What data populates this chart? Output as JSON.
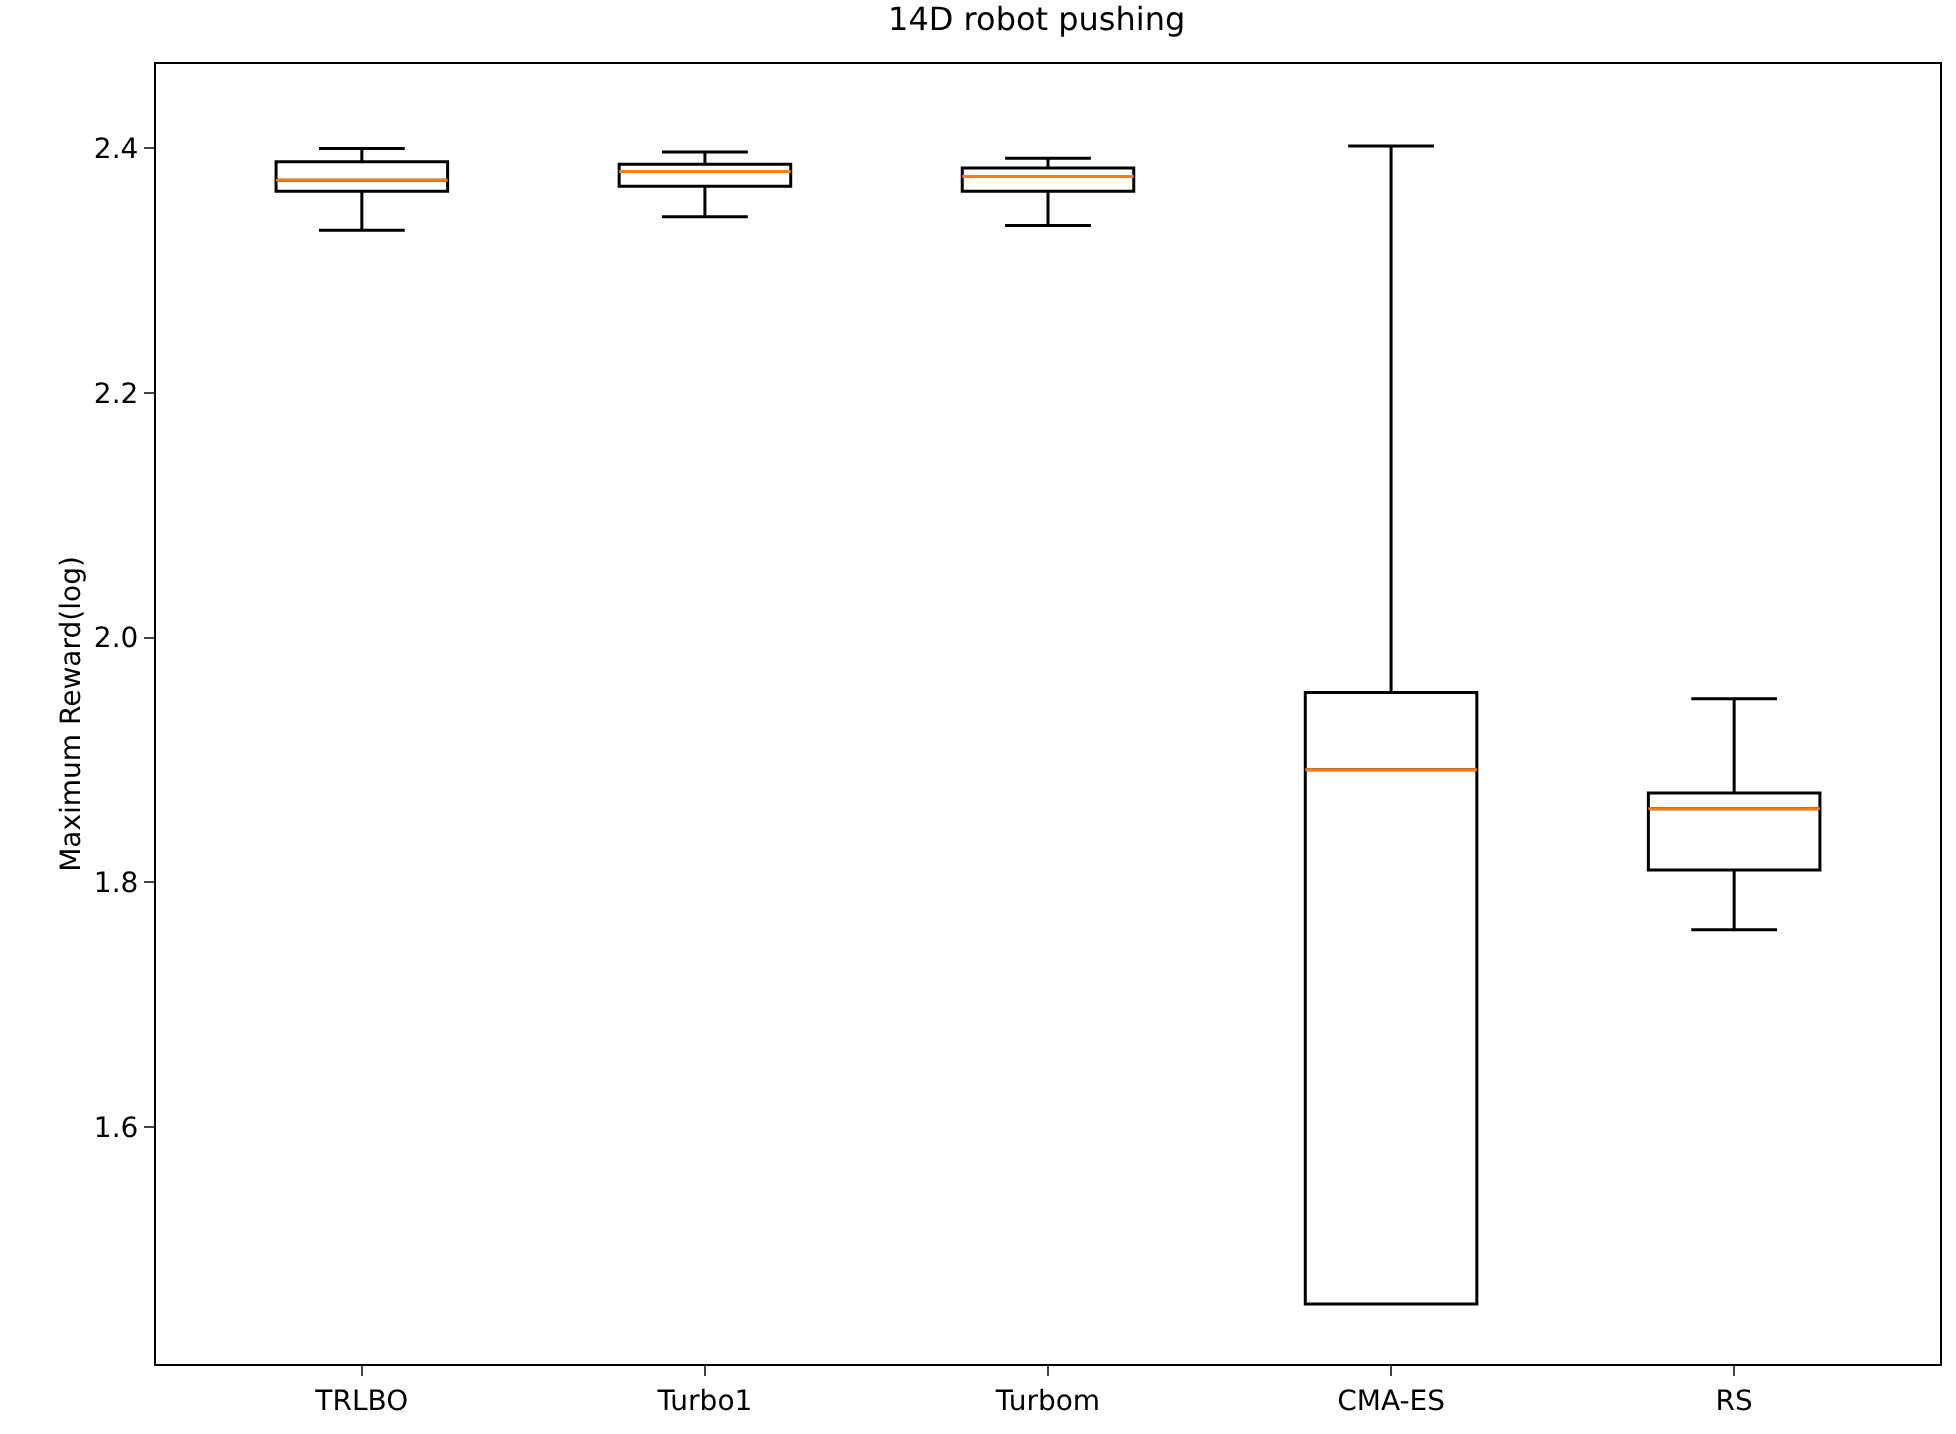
{
  "chart_data": {
    "type": "box",
    "title": "14D robot pushing",
    "ylabel": "Maximum Reward(log)",
    "categories": [
      "TRLBO",
      "Turbo1",
      "Turbom",
      "CMA-ES",
      "RS"
    ],
    "series": [
      {
        "color": "#000000",
        "boxes": [
          {
            "low": 2.333,
            "q1": 2.365,
            "median": 2.374,
            "q3": 2.389,
            "high": 2.4
          },
          {
            "low": 2.344,
            "q1": 2.369,
            "median": 2.381,
            "q3": 2.387,
            "high": 2.397
          },
          {
            "low": 2.337,
            "q1": 2.365,
            "median": 2.377,
            "q3": 2.384,
            "high": 2.392
          },
          {
            "low": 1.455,
            "q1": 1.455,
            "median": 1.892,
            "q3": 1.955,
            "high": 2.402
          },
          {
            "low": 1.761,
            "q1": 1.81,
            "median": 1.86,
            "q3": 1.873,
            "high": 1.95
          }
        ]
      }
    ],
    "ylim": [
      1.406,
      2.469
    ],
    "yticks": [
      1.6,
      1.8,
      {
        "value": 2,
        "label": "2.0"
      },
      2.2,
      2.4
    ]
  }
}
